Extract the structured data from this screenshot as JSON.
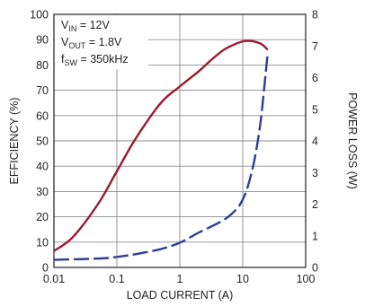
{
  "chart_data": {
    "type": "line",
    "xscale": "log",
    "xlim": [
      0.01,
      100
    ],
    "ylim_left": [
      0,
      100
    ],
    "ylim_right": [
      0,
      8
    ],
    "grid": true,
    "xlabel": "LOAD CURRENT (A)",
    "ylabel_left": "EFFICIENCY (%)",
    "ylabel_right": "POWER LOSS (W)",
    "x_ticks": [
      {
        "value": 0.01,
        "label": "0.01"
      },
      {
        "value": 0.1,
        "label": "0.1"
      },
      {
        "value": 1,
        "label": "1"
      },
      {
        "value": 10,
        "label": "10"
      },
      {
        "value": 100,
        "label": "100"
      }
    ],
    "y_ticks_left": [
      {
        "value": 0,
        "label": "0"
      },
      {
        "value": 10,
        "label": "10"
      },
      {
        "value": 20,
        "label": "20"
      },
      {
        "value": 30,
        "label": "30"
      },
      {
        "value": 40,
        "label": "40"
      },
      {
        "value": 50,
        "label": "50"
      },
      {
        "value": 60,
        "label": "60"
      },
      {
        "value": 70,
        "label": "70"
      },
      {
        "value": 80,
        "label": "80"
      },
      {
        "value": 90,
        "label": "90"
      },
      {
        "value": 100,
        "label": "100"
      }
    ],
    "y_ticks_right": [
      {
        "value": 0,
        "label": "0"
      },
      {
        "value": 1,
        "label": "1"
      },
      {
        "value": 2,
        "label": "2"
      },
      {
        "value": 3,
        "label": "3"
      },
      {
        "value": 4,
        "label": "4"
      },
      {
        "value": 5,
        "label": "5"
      },
      {
        "value": 6,
        "label": "6"
      },
      {
        "value": 7,
        "label": "7"
      },
      {
        "value": 8,
        "label": "8"
      }
    ],
    "annotation": [
      {
        "main": "V",
        "sub": "IN",
        "rest": " = 12V"
      },
      {
        "main": "V",
        "sub": "OUT",
        "rest": " = 1.8V"
      },
      {
        "main": "f",
        "sub": "SW",
        "rest": " = 350kHz"
      }
    ],
    "series": [
      {
        "axis": "left",
        "style": "solid",
        "color": "#9b1b30",
        "x": [
          0.01,
          0.02,
          0.05,
          0.1,
          0.2,
          0.5,
          1,
          2,
          3,
          5,
          8,
          10,
          12,
          15,
          20,
          25
        ],
        "y": [
          6.5,
          12,
          25,
          38,
          51,
          65,
          71.5,
          77.5,
          81.5,
          86,
          88.5,
          89.3,
          89.5,
          89.3,
          88.2,
          86
        ]
      },
      {
        "axis": "right",
        "style": "dashed",
        "color": "#2e3e96",
        "x": [
          0.01,
          0.05,
          0.1,
          0.2,
          0.5,
          1,
          2,
          5,
          8,
          10,
          12,
          15,
          18,
          20,
          22,
          25
        ],
        "y": [
          0.24,
          0.28,
          0.33,
          0.42,
          0.58,
          0.78,
          1.1,
          1.5,
          1.85,
          2.15,
          2.55,
          3.3,
          4.2,
          4.9,
          5.7,
          6.8
        ]
      }
    ]
  }
}
